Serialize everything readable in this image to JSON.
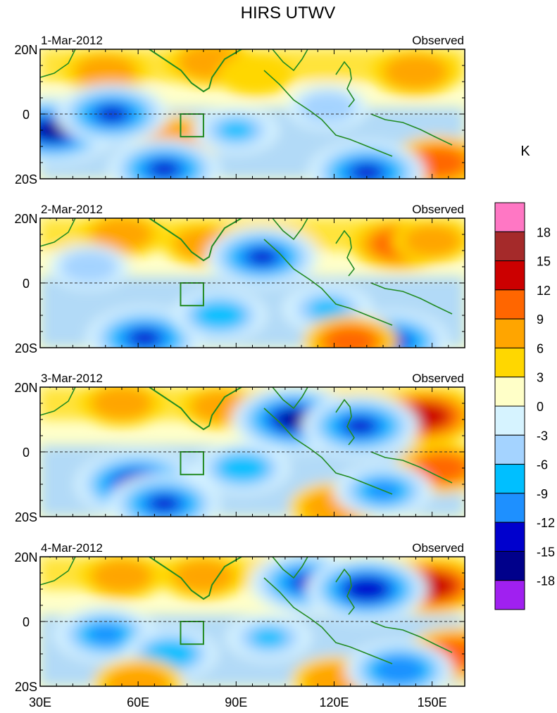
{
  "chart_data": {
    "type": "heatmap",
    "title": "HIRS UTWV",
    "xlabel": "",
    "ylabel": "",
    "x_ticks": [
      "30E",
      "60E",
      "90E",
      "120E",
      "150E"
    ],
    "y_ticks": [
      "20N",
      "0",
      "20S"
    ],
    "xlim": [
      30,
      160
    ],
    "ylim": [
      -20,
      20
    ],
    "colorbar": {
      "unit": "K",
      "labels": [
        "18",
        "15",
        "12",
        "9",
        "6",
        "3",
        "0",
        "-3",
        "-6",
        "-9",
        "-12",
        "-15",
        "-18"
      ],
      "levels": [
        -18,
        -15,
        -12,
        -9,
        -6,
        -3,
        0,
        3,
        6,
        9,
        12,
        15,
        18
      ],
      "colors": [
        "#a020f0",
        "#00008b",
        "#0000cd",
        "#1e90ff",
        "#00bfff",
        "#a4d3ff",
        "#d6f3ff",
        "#ffffc8",
        "#ffd700",
        "#ffa500",
        "#ff6600",
        "#cc0000",
        "#a52a2a",
        "#ff77c4"
      ]
    },
    "box_region": {
      "lon": [
        73,
        80
      ],
      "lat": [
        -7,
        0
      ]
    },
    "panels": [
      {
        "date": "1-Mar-2012",
        "label": "Observed",
        "anomalies": [
          {
            "lon": 50,
            "lat": 13,
            "value": 7
          },
          {
            "lon": 82,
            "lat": 16,
            "value": 8
          },
          {
            "lon": 96,
            "lat": 12,
            "value": 5
          },
          {
            "lon": 145,
            "lat": 13,
            "value": 8
          },
          {
            "lon": 72,
            "lat": -8,
            "value": 8
          },
          {
            "lon": 152,
            "lat": -15,
            "value": 10
          },
          {
            "lon": 34,
            "lat": -5,
            "value": -16
          },
          {
            "lon": 52,
            "lat": 0,
            "value": -13
          },
          {
            "lon": 68,
            "lat": -17,
            "value": -13
          },
          {
            "lon": 118,
            "lat": 2,
            "value": -6
          },
          {
            "lon": 130,
            "lat": -18,
            "value": -14
          },
          {
            "lon": 90,
            "lat": -5,
            "value": -7
          }
        ]
      },
      {
        "date": "2-Mar-2012",
        "label": "Observed",
        "anomalies": [
          {
            "lon": 55,
            "lat": 15,
            "value": 7
          },
          {
            "lon": 80,
            "lat": 12,
            "value": 6
          },
          {
            "lon": 140,
            "lat": 12,
            "value": 10
          },
          {
            "lon": 150,
            "lat": 13,
            "value": 6
          },
          {
            "lon": 98,
            "lat": 8,
            "value": -13
          },
          {
            "lon": 45,
            "lat": 5,
            "value": -6
          },
          {
            "lon": 62,
            "lat": -17,
            "value": -14
          },
          {
            "lon": 118,
            "lat": -8,
            "value": -8
          },
          {
            "lon": 138,
            "lat": -18,
            "value": -13
          },
          {
            "lon": 125,
            "lat": -18,
            "value": 9
          },
          {
            "lon": 85,
            "lat": -10,
            "value": -9
          }
        ]
      },
      {
        "date": "3-Mar-2012",
        "label": "Observed",
        "anomalies": [
          {
            "lon": 55,
            "lat": 15,
            "value": 7
          },
          {
            "lon": 85,
            "lat": 14,
            "value": 6
          },
          {
            "lon": 148,
            "lat": 11,
            "value": 12
          },
          {
            "lon": 108,
            "lat": 10,
            "value": -16
          },
          {
            "lon": 128,
            "lat": 8,
            "value": -14
          },
          {
            "lon": 60,
            "lat": -10,
            "value": -16
          },
          {
            "lon": 68,
            "lat": -16,
            "value": -13
          },
          {
            "lon": 153,
            "lat": -5,
            "value": 9
          },
          {
            "lon": 92,
            "lat": -5,
            "value": -9
          },
          {
            "lon": 120,
            "lat": -17,
            "value": 8
          },
          {
            "lon": 135,
            "lat": -12,
            "value": -10
          }
        ]
      },
      {
        "date": "4-Mar-2012",
        "label": "Observed",
        "anomalies": [
          {
            "lon": 55,
            "lat": 14,
            "value": 7
          },
          {
            "lon": 80,
            "lat": 14,
            "value": 7
          },
          {
            "lon": 150,
            "lat": 11,
            "value": 12
          },
          {
            "lon": 112,
            "lat": 12,
            "value": -14
          },
          {
            "lon": 130,
            "lat": 10,
            "value": -15
          },
          {
            "lon": 50,
            "lat": -4,
            "value": -11
          },
          {
            "lon": 70,
            "lat": -10,
            "value": -9
          },
          {
            "lon": 60,
            "lat": -19,
            "value": 8
          },
          {
            "lon": 120,
            "lat": -18,
            "value": 7
          },
          {
            "lon": 157,
            "lat": -10,
            "value": 10
          },
          {
            "lon": 100,
            "lat": -5,
            "value": -7
          },
          {
            "lon": 140,
            "lat": -15,
            "value": -12
          }
        ]
      }
    ]
  }
}
